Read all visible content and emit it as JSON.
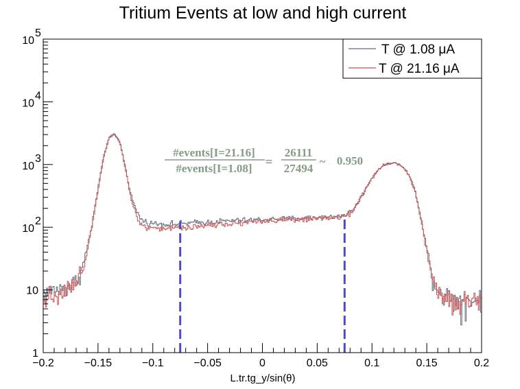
{
  "chart_data": {
    "type": "line",
    "title": "Tritium Events at low and high current",
    "xlabel": "L.tr.tg_y/sin(θ)",
    "ylabel": "",
    "xlim": [
      -0.2,
      0.2
    ],
    "ylim": [
      1,
      100000
    ],
    "yscale": "log",
    "grid": false,
    "legend_position": "top-right",
    "x_ticks": [
      {
        "value": -0.2,
        "label": "−0.2"
      },
      {
        "value": -0.15,
        "label": "−0.15"
      },
      {
        "value": -0.1,
        "label": "−0.1"
      },
      {
        "value": -0.05,
        "label": "−0.05"
      },
      {
        "value": 0,
        "label": "0"
      },
      {
        "value": 0.05,
        "label": "0.05"
      },
      {
        "value": 0.1,
        "label": "0.1"
      },
      {
        "value": 0.15,
        "label": "0.15"
      },
      {
        "value": 0.2,
        "label": "0.2"
      }
    ],
    "y_ticks": [
      {
        "value": 1,
        "base": "1",
        "exp": ""
      },
      {
        "value": 10,
        "base": "10",
        "exp": ""
      },
      {
        "value": 100,
        "base": "10",
        "exp": "2"
      },
      {
        "value": 1000,
        "base": "10",
        "exp": "3"
      },
      {
        "value": 10000,
        "base": "10",
        "exp": "4"
      },
      {
        "value": 100000,
        "base": "10",
        "exp": "5"
      }
    ],
    "series": [
      {
        "name": "T @ 1.08  μA",
        "color": "#5f6b7a",
        "points": [
          [
            -0.2,
            9
          ],
          [
            -0.195,
            9
          ],
          [
            -0.19,
            10
          ],
          [
            -0.185,
            10
          ],
          [
            -0.18,
            11
          ],
          [
            -0.175,
            12
          ],
          [
            -0.17,
            14
          ],
          [
            -0.165,
            20
          ],
          [
            -0.16,
            45
          ],
          [
            -0.155,
            120
          ],
          [
            -0.15,
            420
          ],
          [
            -0.145,
            1300
          ],
          [
            -0.14,
            2700
          ],
          [
            -0.135,
            3100
          ],
          [
            -0.13,
            2300
          ],
          [
            -0.125,
            900
          ],
          [
            -0.12,
            330
          ],
          [
            -0.115,
            180
          ],
          [
            -0.11,
            130
          ],
          [
            -0.105,
            118
          ],
          [
            -0.1,
            115
          ],
          [
            -0.09,
            112
          ],
          [
            -0.08,
            112
          ],
          [
            -0.07,
            115
          ],
          [
            -0.06,
            118
          ],
          [
            -0.05,
            120
          ],
          [
            -0.04,
            124
          ],
          [
            -0.03,
            126
          ],
          [
            -0.02,
            128
          ],
          [
            -0.01,
            130
          ],
          [
            0.0,
            132
          ],
          [
            0.01,
            134
          ],
          [
            0.02,
            136
          ],
          [
            0.03,
            138
          ],
          [
            0.04,
            140
          ],
          [
            0.05,
            142
          ],
          [
            0.06,
            145
          ],
          [
            0.07,
            150
          ],
          [
            0.075,
            158
          ],
          [
            0.08,
            175
          ],
          [
            0.085,
            215
          ],
          [
            0.09,
            300
          ],
          [
            0.095,
            440
          ],
          [
            0.1,
            620
          ],
          [
            0.105,
            810
          ],
          [
            0.11,
            960
          ],
          [
            0.115,
            1050
          ],
          [
            0.12,
            1070
          ],
          [
            0.125,
            1000
          ],
          [
            0.13,
            850
          ],
          [
            0.135,
            620
          ],
          [
            0.14,
            350
          ],
          [
            0.145,
            130
          ],
          [
            0.15,
            45
          ],
          [
            0.155,
            17
          ],
          [
            0.16,
            10
          ],
          [
            0.17,
            8
          ],
          [
            0.18,
            7
          ],
          [
            0.19,
            7
          ],
          [
            0.2,
            7
          ]
        ]
      },
      {
        "name": "T @ 21.16 μA",
        "color": "#c94f4f",
        "points": [
          [
            -0.2,
            8
          ],
          [
            -0.195,
            8
          ],
          [
            -0.19,
            9
          ],
          [
            -0.185,
            9
          ],
          [
            -0.18,
            10
          ],
          [
            -0.175,
            11
          ],
          [
            -0.17,
            13
          ],
          [
            -0.165,
            19
          ],
          [
            -0.16,
            42
          ],
          [
            -0.155,
            115
          ],
          [
            -0.15,
            400
          ],
          [
            -0.145,
            1250
          ],
          [
            -0.14,
            2650
          ],
          [
            -0.135,
            3050
          ],
          [
            -0.13,
            2250
          ],
          [
            -0.125,
            860
          ],
          [
            -0.12,
            300
          ],
          [
            -0.115,
            150
          ],
          [
            -0.11,
            110
          ],
          [
            -0.105,
            100
          ],
          [
            -0.1,
            98
          ],
          [
            -0.09,
            96
          ],
          [
            -0.08,
            97
          ],
          [
            -0.07,
            100
          ],
          [
            -0.06,
            104
          ],
          [
            -0.05,
            108
          ],
          [
            -0.04,
            112
          ],
          [
            -0.03,
            116
          ],
          [
            -0.02,
            119
          ],
          [
            -0.01,
            122
          ],
          [
            0.0,
            125
          ],
          [
            0.01,
            127
          ],
          [
            0.02,
            129
          ],
          [
            0.03,
            131
          ],
          [
            0.04,
            133
          ],
          [
            0.05,
            135
          ],
          [
            0.06,
            138
          ],
          [
            0.07,
            142
          ],
          [
            0.075,
            150
          ],
          [
            0.08,
            168
          ],
          [
            0.085,
            205
          ],
          [
            0.09,
            290
          ],
          [
            0.095,
            425
          ],
          [
            0.1,
            600
          ],
          [
            0.105,
            790
          ],
          [
            0.11,
            940
          ],
          [
            0.115,
            1030
          ],
          [
            0.12,
            1050
          ],
          [
            0.125,
            985
          ],
          [
            0.13,
            835
          ],
          [
            0.135,
            600
          ],
          [
            0.14,
            335
          ],
          [
            0.145,
            125
          ],
          [
            0.15,
            42
          ],
          [
            0.155,
            16
          ],
          [
            0.16,
            9
          ],
          [
            0.17,
            7
          ],
          [
            0.18,
            6
          ],
          [
            0.19,
            7
          ],
          [
            0.2,
            6
          ]
        ]
      }
    ],
    "cut_lines": [
      {
        "x": -0.075,
        "y_top": 125,
        "color": "#4c4cc8"
      },
      {
        "x": 0.075,
        "y_top": 150,
        "color": "#4c4cc8"
      }
    ],
    "annotation": {
      "numerator_label": "#events[I=21.16]",
      "denominator_label": "#events[I=1.08]",
      "equals": "=",
      "numerator_value": "26111",
      "denominator_value": "27494",
      "approx": "~",
      "ratio": "0.950"
    }
  }
}
